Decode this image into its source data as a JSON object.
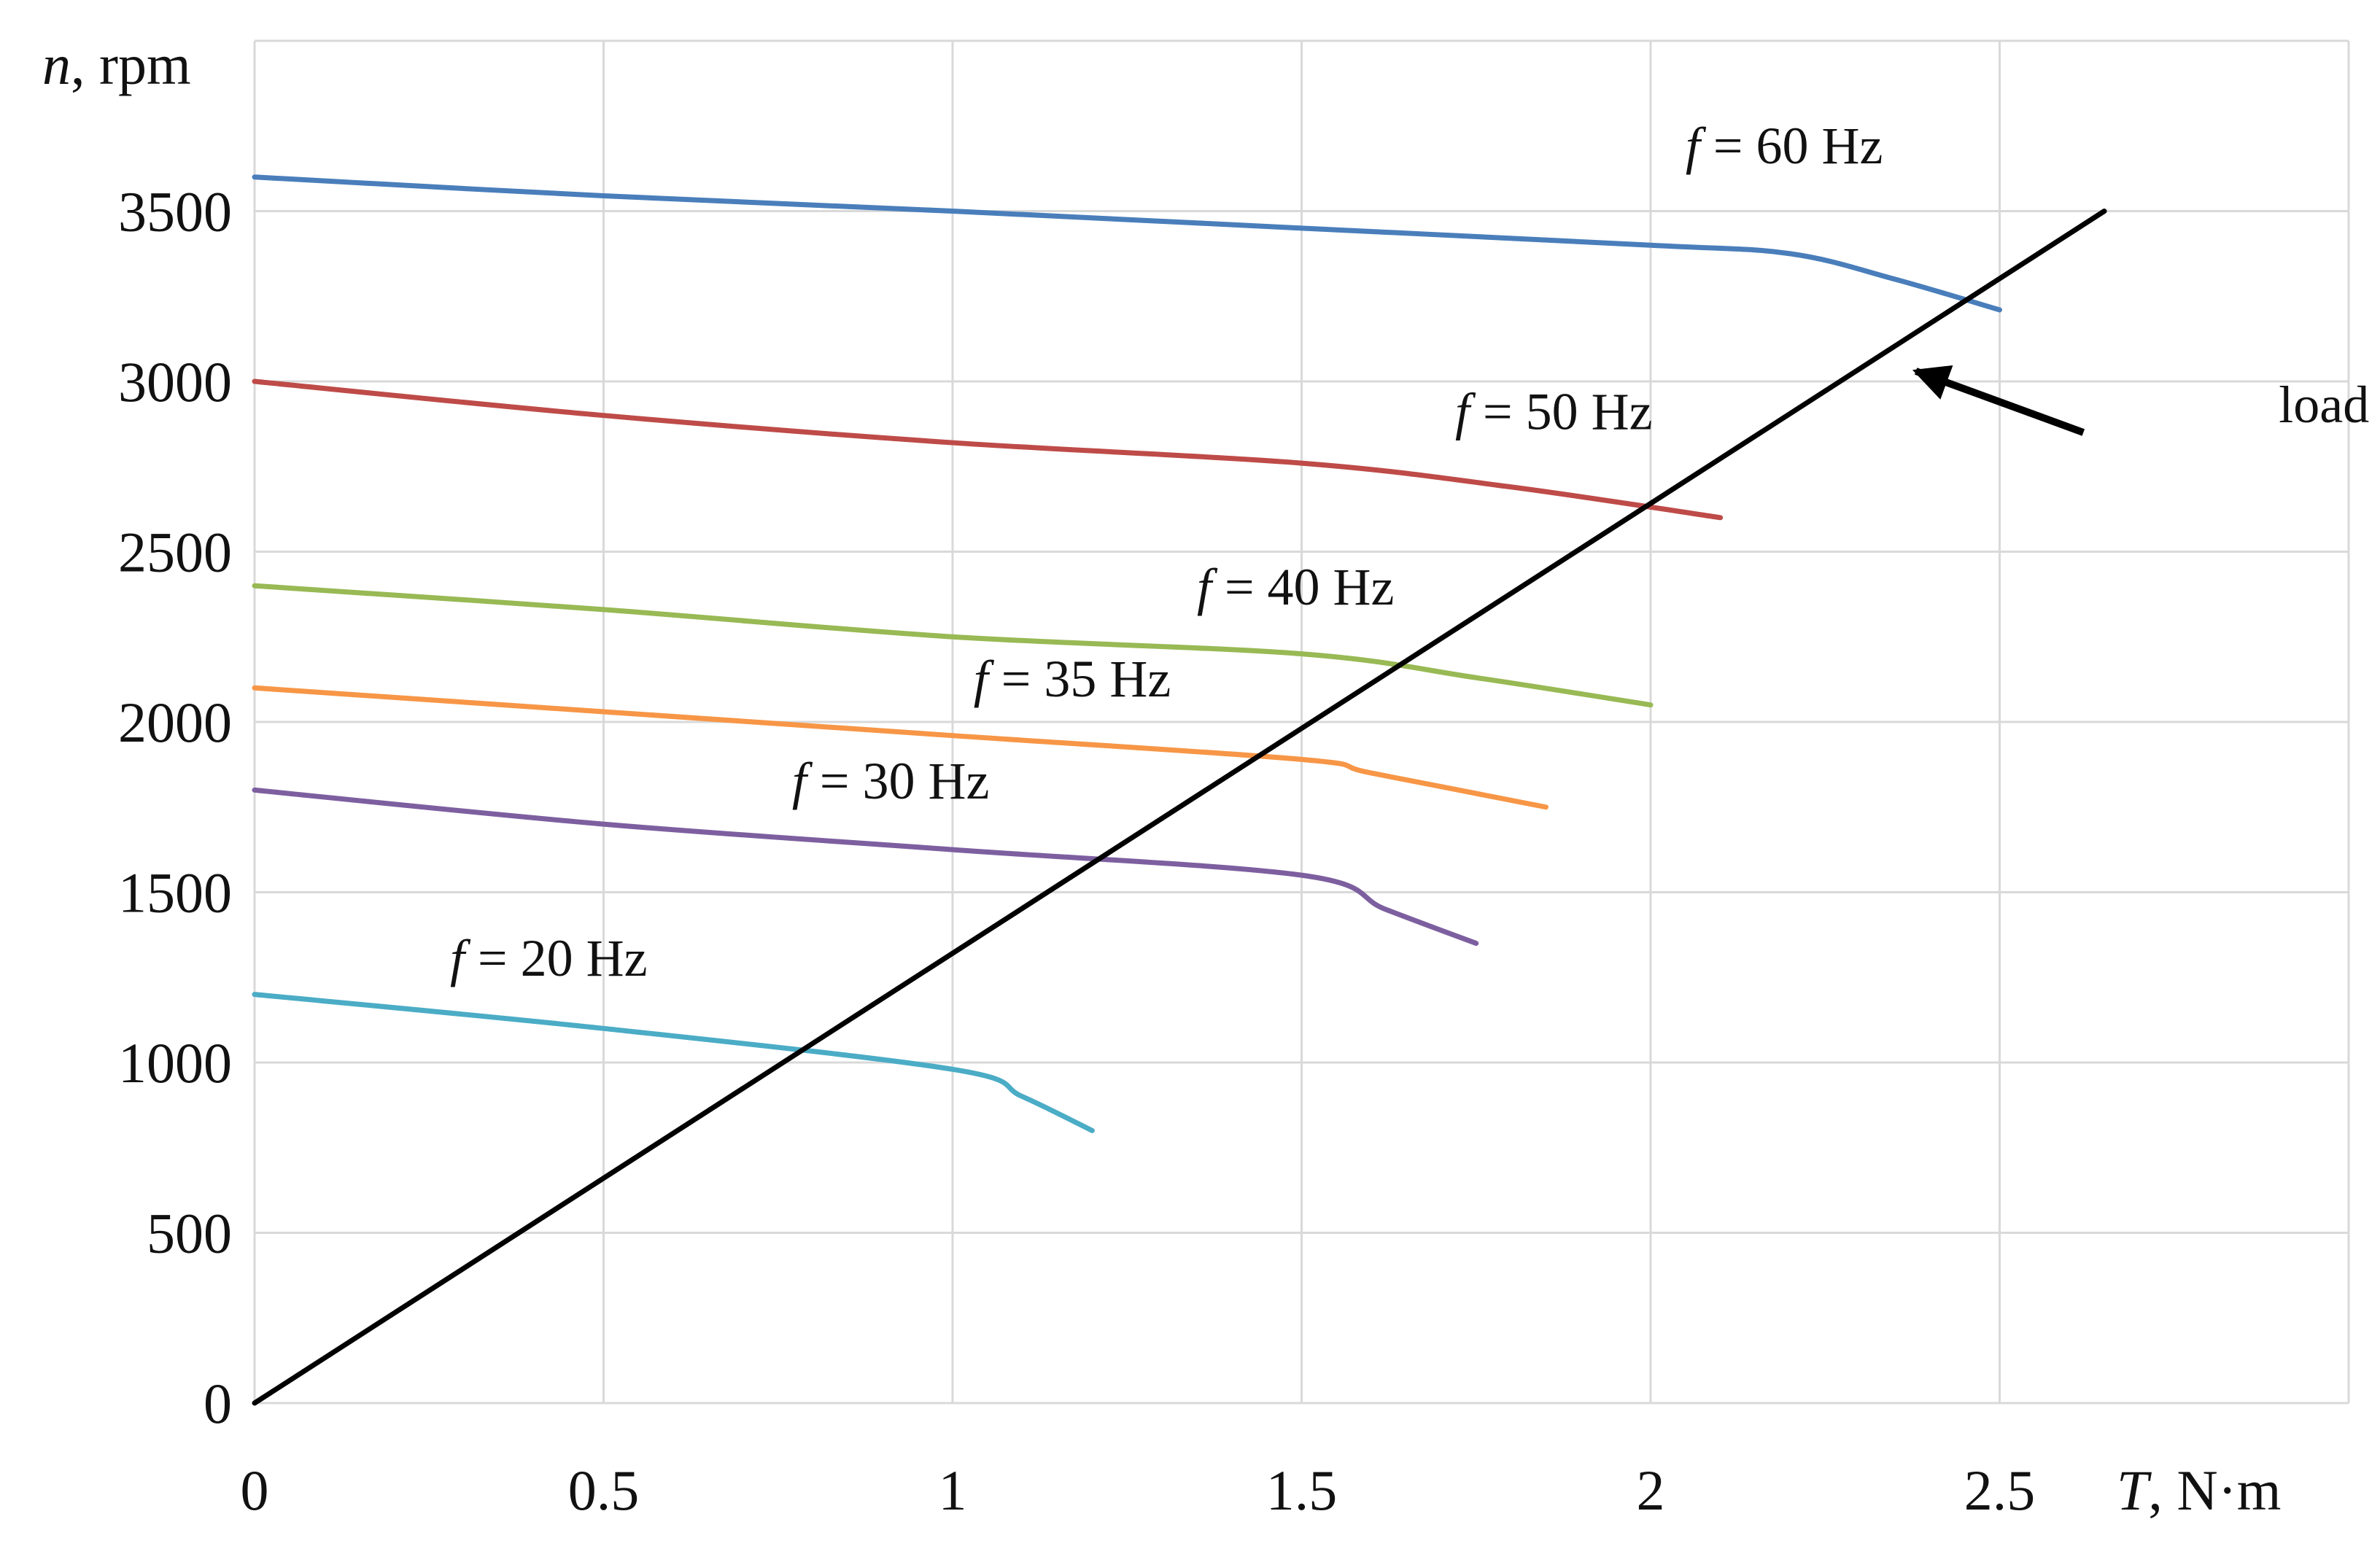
{
  "chart_data": {
    "type": "line",
    "title": "",
    "xlabel": {
      "symbol": "T",
      "unit": ", N·m"
    },
    "ylabel": {
      "symbol": "n",
      "unit": ", rpm"
    },
    "xlim": [
      0,
      3
    ],
    "ylim": [
      0,
      4000
    ],
    "grid": true,
    "x_ticks": [
      {
        "value": 0,
        "label": "0"
      },
      {
        "value": 0.5,
        "label": "0.5"
      },
      {
        "value": 1,
        "label": "1"
      },
      {
        "value": 1.5,
        "label": "1.5"
      },
      {
        "value": 2,
        "label": "2"
      },
      {
        "value": 2.5,
        "label": "2.5"
      }
    ],
    "y_ticks": [
      {
        "value": 0,
        "label": "0"
      },
      {
        "value": 500,
        "label": "500"
      },
      {
        "value": 1000,
        "label": "1000"
      },
      {
        "value": 1500,
        "label": "1500"
      },
      {
        "value": 2000,
        "label": "2000"
      },
      {
        "value": 2500,
        "label": "2500"
      },
      {
        "value": 3000,
        "label": "3000"
      },
      {
        "value": 3500,
        "label": "3500"
      }
    ],
    "series": [
      {
        "name": "f = 60 Hz",
        "symbol": "f",
        "text": " = 60 Hz",
        "color": "#4a7ebb",
        "x": [
          0,
          0.5,
          1,
          1.5,
          2,
          2.2,
          2.35,
          2.5
        ],
        "y": [
          3600,
          3545,
          3500,
          3450,
          3400,
          3375,
          3300,
          3210
        ],
        "label_at": [
          2.05,
          3640
        ]
      },
      {
        "name": "f = 50 Hz",
        "symbol": "f",
        "text": " = 50 Hz",
        "color": "#be4b48",
        "x": [
          0,
          0.5,
          1,
          1.5,
          1.8,
          2.1
        ],
        "y": [
          3000,
          2900,
          2820,
          2760,
          2690,
          2600
        ],
        "label_at": [
          1.72,
          2860
        ]
      },
      {
        "name": "f = 40 Hz",
        "symbol": "f",
        "text": " = 40 Hz",
        "color": "#98b954",
        "x": [
          0,
          0.5,
          1,
          1.5,
          1.75,
          2
        ],
        "y": [
          2400,
          2330,
          2250,
          2200,
          2130,
          2050
        ],
        "label_at": [
          1.35,
          2345
        ]
      },
      {
        "name": "f = 35 Hz",
        "symbol": "f",
        "text": " = 35 Hz",
        "color": "#f79646",
        "x": [
          0,
          0.5,
          1,
          1.5,
          1.6,
          1.85
        ],
        "y": [
          2100,
          2030,
          1960,
          1890,
          1850,
          1750
        ],
        "label_at": [
          1.03,
          2075
        ]
      },
      {
        "name": "f = 30 Hz",
        "symbol": "f",
        "text": " = 30 Hz",
        "color": "#7d5fa0",
        "x": [
          0,
          0.5,
          1,
          1.5,
          1.62,
          1.75
        ],
        "y": [
          1800,
          1700,
          1625,
          1550,
          1450,
          1350
        ],
        "label_at": [
          0.77,
          1775
        ]
      },
      {
        "name": "f = 20 Hz",
        "symbol": "f",
        "text": " = 20 Hz",
        "color": "#4bacc6",
        "x": [
          0,
          0.5,
          1,
          1.1,
          1.2
        ],
        "y": [
          1200,
          1100,
          980,
          900,
          800
        ],
        "label_at": [
          0.28,
          1255
        ]
      },
      {
        "name": "load",
        "symbol": "",
        "text": "",
        "color": "#000000",
        "x": [
          0,
          2.65
        ],
        "y": [
          0,
          3500
        ],
        "label_at": null
      }
    ],
    "annotations": [
      {
        "text": "load",
        "at": [
          2.9,
          2880
        ],
        "arrow_from": [
          2.62,
          2850
        ],
        "arrow_to": [
          2.38,
          3030
        ]
      }
    ]
  }
}
